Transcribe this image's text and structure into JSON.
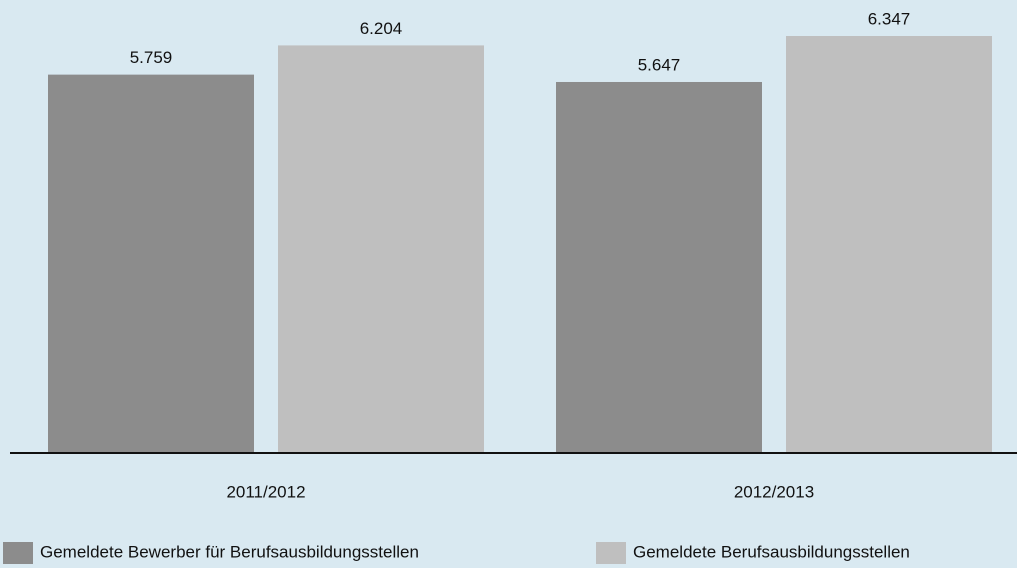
{
  "chart_data": {
    "type": "bar",
    "categories": [
      "2011/2012",
      "2012/2013"
    ],
    "series": [
      {
        "name": "Gemeldete Bewerber für Berufsausbildungsstellen",
        "color": "#8c8c8c",
        "values": [
          5759,
          5647
        ],
        "value_labels": [
          "5.759",
          "5.647"
        ]
      },
      {
        "name": "Gemeldete Berufsausbildungsstellen",
        "color": "#bfbfbf",
        "values": [
          6204,
          6347
        ],
        "value_labels": [
          "6.204",
          "6.347"
        ]
      }
    ]
  }
}
